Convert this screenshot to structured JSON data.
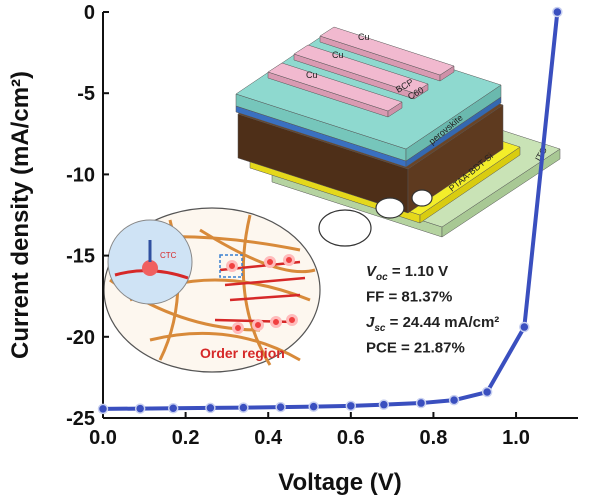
{
  "chart_data": {
    "type": "line",
    "xlabel": "Voltage (V)",
    "ylabel": "Current density (mA/cm²)",
    "x": [
      0.0,
      0.09,
      0.17,
      0.26,
      0.34,
      0.43,
      0.51,
      0.6,
      0.68,
      0.77,
      0.85,
      0.93,
      1.02,
      1.1
    ],
    "series": [
      {
        "color": "#3a4fbf",
        "values": [
          -24.44,
          -24.42,
          -24.4,
          -24.38,
          -24.36,
          -24.33,
          -24.3,
          -24.25,
          -24.18,
          -24.08,
          -23.9,
          -23.4,
          -19.4,
          0
        ]
      }
    ],
    "xlim": [
      0,
      1.15
    ],
    "ylim": [
      -25,
      0
    ],
    "xticks": [
      {
        "value": 0,
        "label": "0.0"
      },
      0.2,
      0.4,
      0.6,
      0.8,
      {
        "value": 1,
        "label": "1.0"
      }
    ],
    "yticks": [
      0,
      -5,
      -10,
      -15,
      -20,
      -25
    ],
    "annotations": [
      {
        "symbol": "V",
        "subscript": "oc",
        "text": " = 1.10 V",
        "color": "#222222"
      },
      {
        "text": "FF = 81.37%",
        "color": "#222222"
      },
      {
        "symbol": "J",
        "subscript": "sc",
        "text": " = 24.44 mA/cm²",
        "color": "#222222"
      },
      {
        "text": "PCE = 21.87%",
        "color": "#e8482a"
      }
    ],
    "inset": {
      "layers": [
        "Cu",
        "Cu",
        "Cu",
        "BCP",
        "C60",
        "perovskite",
        "PTAA-BDT-Si",
        "ITO"
      ],
      "molecule_labels": [
        "CTC",
        "Order region"
      ]
    }
  }
}
